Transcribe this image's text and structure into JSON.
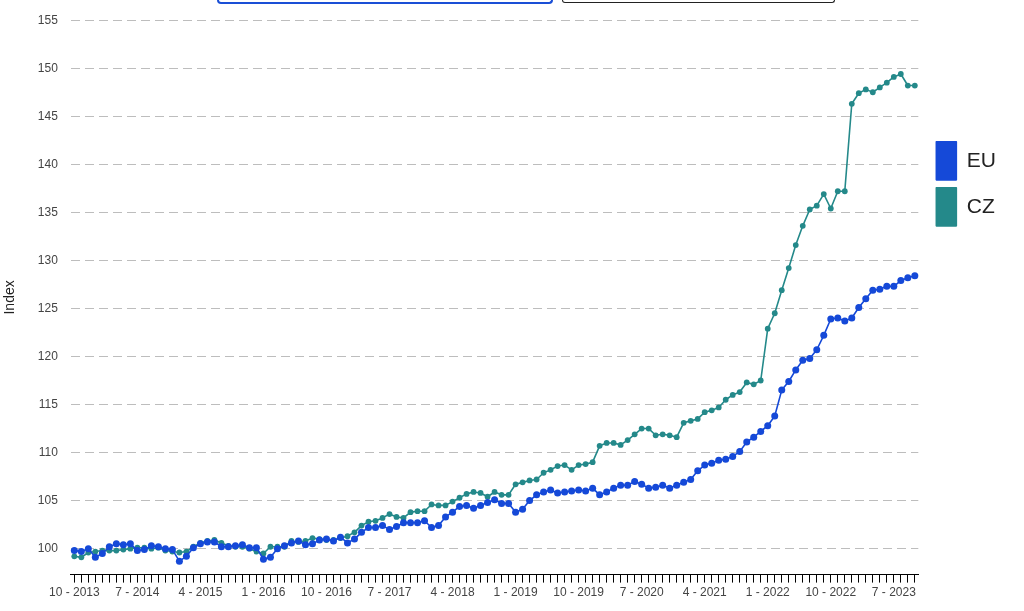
{
  "chart_data": {
    "type": "line",
    "ylabel": "Index",
    "categories": [
      "10 - 2013",
      null,
      null,
      null,
      null,
      null,
      null,
      null,
      null,
      "7 - 2014",
      null,
      null,
      null,
      null,
      null,
      null,
      null,
      null,
      "4 - 2015",
      null,
      null,
      null,
      null,
      null,
      null,
      null,
      null,
      "1 - 2016",
      null,
      null,
      null,
      null,
      null,
      null,
      null,
      null,
      "10 - 2016",
      null,
      null,
      null,
      null,
      null,
      null,
      null,
      null,
      "7 - 2017",
      null,
      null,
      null,
      null,
      null,
      null,
      null,
      null,
      "4 - 2018",
      null,
      null,
      null,
      null,
      null,
      null,
      null,
      null,
      "1 - 2019",
      null,
      null,
      null,
      null,
      null,
      null,
      null,
      null,
      "10 - 2019",
      null,
      null,
      null,
      null,
      null,
      null,
      null,
      null,
      "7 - 2020",
      null,
      null,
      null,
      null,
      null,
      null,
      null,
      null,
      "4 - 2021",
      null,
      null,
      null,
      null,
      null,
      null,
      null,
      null,
      "1 - 2022",
      null,
      null,
      null,
      null,
      null,
      null,
      null,
      null,
      "10 - 2022",
      null,
      null,
      null,
      null,
      null,
      null,
      null,
      null,
      "7 - 2023",
      null,
      null,
      null
    ],
    "series": [
      {
        "name": "EU",
        "color": "#1549d8",
        "values": [
          99.8,
          99.7,
          100.0,
          99.1,
          99.5,
          100.2,
          100.5,
          100.4,
          100.5,
          99.8,
          99.9,
          100.3,
          100.2,
          100.0,
          99.9,
          98.7,
          99.2,
          100.1,
          100.5,
          100.7,
          100.7,
          100.2,
          100.2,
          100.3,
          100.4,
          100.1,
          100.1,
          98.9,
          99.1,
          100.0,
          100.3,
          100.6,
          100.8,
          100.4,
          100.5,
          100.9,
          101.0,
          100.8,
          101.2,
          100.6,
          101.0,
          101.7,
          102.2,
          102.2,
          102.4,
          102.0,
          102.3,
          102.7,
          102.7,
          102.7,
          102.9,
          102.2,
          102.4,
          103.3,
          103.8,
          104.4,
          104.5,
          104.2,
          104.5,
          104.8,
          105.1,
          104.7,
          104.7,
          103.8,
          104.1,
          105.0,
          105.6,
          105.9,
          106.1,
          105.8,
          105.9,
          106.0,
          106.1,
          106.0,
          106.3,
          105.6,
          105.9,
          106.3,
          106.6,
          106.6,
          107.0,
          106.7,
          106.3,
          106.4,
          106.6,
          106.3,
          106.6,
          106.9,
          107.2,
          108.1,
          108.7,
          108.9,
          109.2,
          109.3,
          109.6,
          110.1,
          111.1,
          111.6,
          112.2,
          112.8,
          113.8,
          116.5,
          117.4,
          118.6,
          119.6,
          119.8,
          120.7,
          122.2,
          123.9,
          124.0,
          123.7,
          124.0,
          125.1,
          126.0,
          126.9,
          127.0,
          127.3,
          127.3,
          127.9,
          128.2,
          128.4
        ]
      },
      {
        "name": "CZ",
        "color": "#24898a",
        "values": [
          99.2,
          99.1,
          99.6,
          99.7,
          99.8,
          99.8,
          99.8,
          99.9,
          100.0,
          100.1,
          100.1,
          100.0,
          100.1,
          99.8,
          99.7,
          99.6,
          99.7,
          100.2,
          100.6,
          100.8,
          100.9,
          100.6,
          100.3,
          100.2,
          100.2,
          100.0,
          99.7,
          99.5,
          100.2,
          100.2,
          100.2,
          100.8,
          100.7,
          100.8,
          101.1,
          101.0,
          100.9,
          100.9,
          101.1,
          101.3,
          101.7,
          102.4,
          102.8,
          102.9,
          103.2,
          103.6,
          103.3,
          103.2,
          103.8,
          103.9,
          103.9,
          104.6,
          104.5,
          104.5,
          104.9,
          105.3,
          105.7,
          105.9,
          105.8,
          105.4,
          105.9,
          105.6,
          105.6,
          106.7,
          106.9,
          107.1,
          107.2,
          107.9,
          108.2,
          108.6,
          108.7,
          108.2,
          108.7,
          108.8,
          109.0,
          110.7,
          111.0,
          111.0,
          110.8,
          111.3,
          111.9,
          112.5,
          112.5,
          111.8,
          111.9,
          111.8,
          111.6,
          113.1,
          113.3,
          113.5,
          114.2,
          114.4,
          114.7,
          115.5,
          116.0,
          116.3,
          117.3,
          117.1,
          117.5,
          122.9,
          124.5,
          126.9,
          129.2,
          131.6,
          133.6,
          135.3,
          135.7,
          136.9,
          135.4,
          137.2,
          137.2,
          146.3,
          147.4,
          147.8,
          147.5,
          148.0,
          148.5,
          149.1,
          149.4,
          148.2,
          148.2
        ]
      }
    ],
    "ylim": [
      97.3,
      155
    ],
    "yticks": [
      100,
      105,
      110,
      115,
      120,
      125,
      130,
      135,
      140,
      145,
      150,
      155
    ],
    "grid": "y",
    "legend": "right",
    "marker": "circle"
  }
}
